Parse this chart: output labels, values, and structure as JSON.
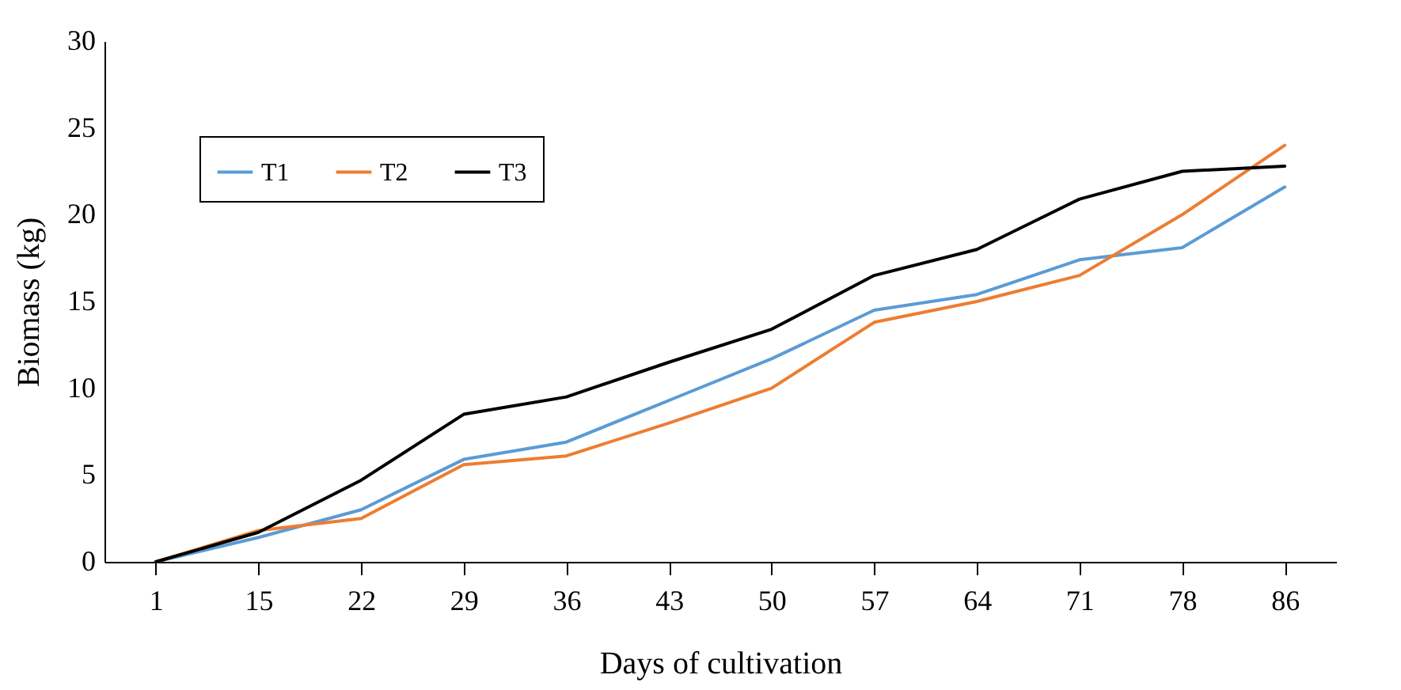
{
  "chart_data": {
    "type": "line",
    "xlabel": "Days of cultivation",
    "ylabel": "Biomass (kg)",
    "categories": [
      "1",
      "15",
      "22",
      "29",
      "36",
      "43",
      "50",
      "57",
      "64",
      "71",
      "78",
      "86"
    ],
    "series": [
      {
        "name": "T1",
        "color": "#5b9bd5",
        "values": [
          0,
          1.4,
          3.0,
          5.9,
          6.9,
          9.3,
          11.7,
          14.5,
          15.4,
          17.4,
          18.1,
          21.6
        ]
      },
      {
        "name": "T2",
        "color": "#ed7d31",
        "values": [
          0,
          1.8,
          2.5,
          5.6,
          6.1,
          8.0,
          10.0,
          13.8,
          15.0,
          16.5,
          20.0,
          24.0
        ]
      },
      {
        "name": "T3",
        "color": "#000000",
        "values": [
          0,
          1.7,
          4.7,
          8.5,
          9.5,
          11.5,
          13.4,
          16.5,
          18.0,
          20.9,
          22.5,
          22.8
        ]
      }
    ],
    "ylim": [
      0,
      30
    ],
    "yticks": [
      0,
      5,
      10,
      15,
      20,
      25,
      30
    ],
    "legend": "top left"
  }
}
